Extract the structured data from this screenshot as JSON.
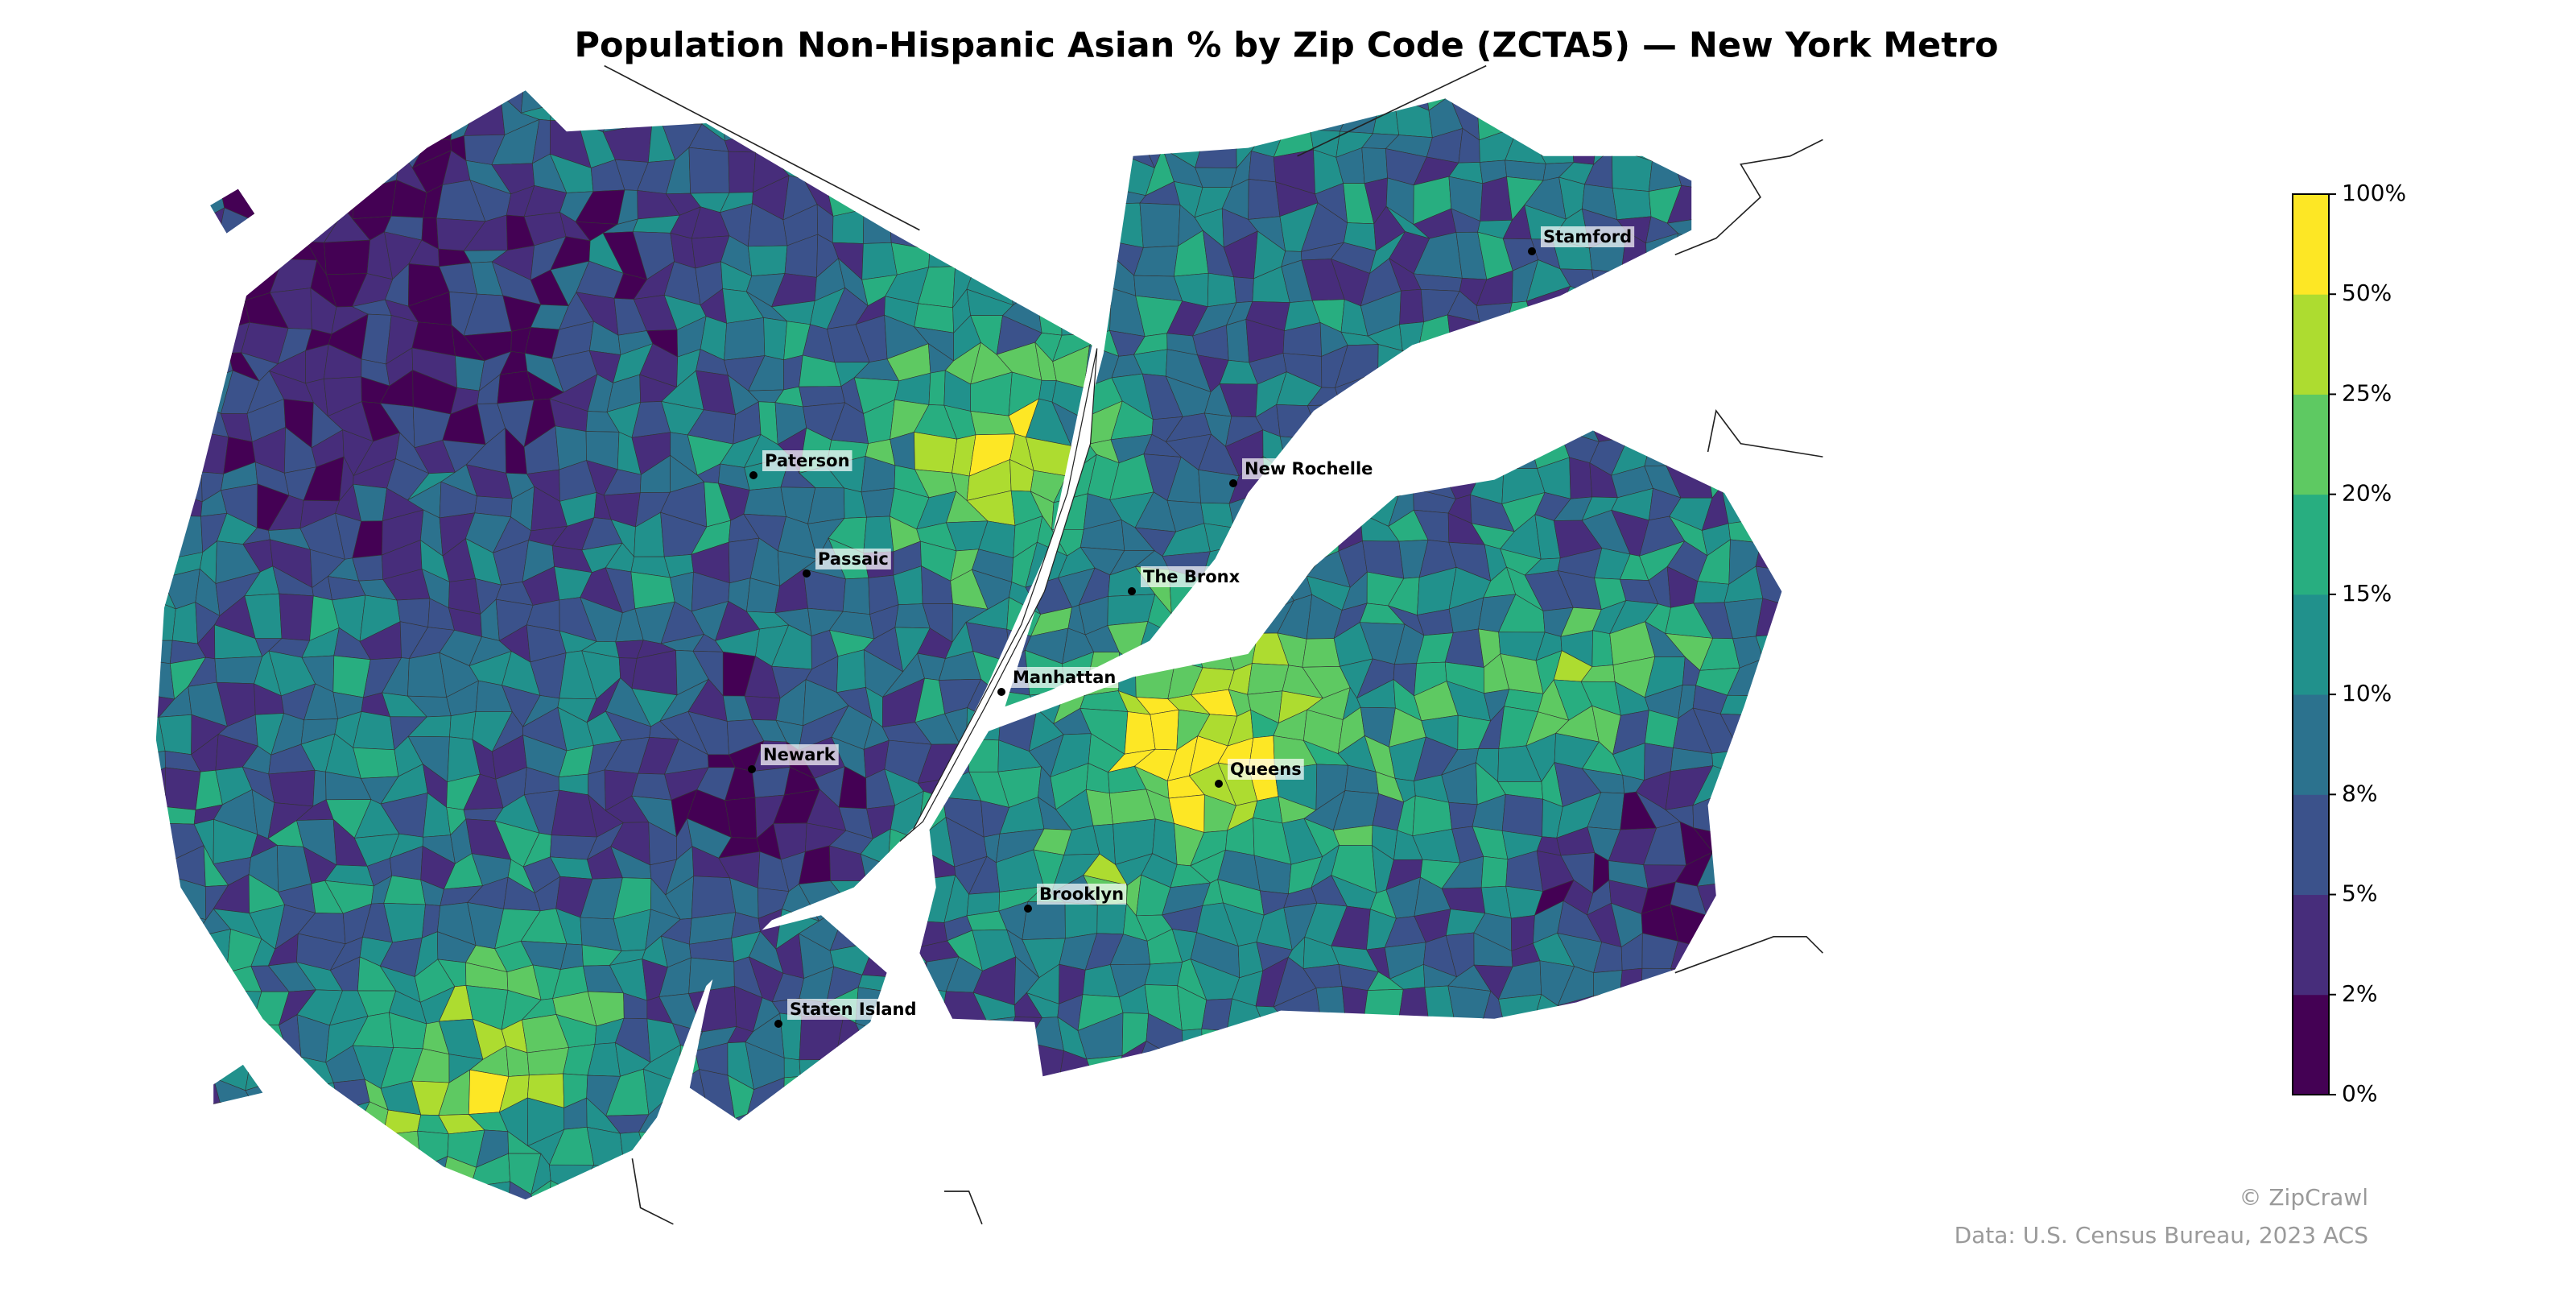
{
  "title": "Population Non-Hispanic Asian % by Zip Code (ZCTA5) — New York Metro",
  "colorbar": {
    "ticks": [
      {
        "value": 0,
        "label": "0%"
      },
      {
        "value": 2,
        "label": "2%"
      },
      {
        "value": 5,
        "label": "5%"
      },
      {
        "value": 8,
        "label": "8%"
      },
      {
        "value": 10,
        "label": "10%"
      },
      {
        "value": 15,
        "label": "15%"
      },
      {
        "value": 20,
        "label": "20%"
      },
      {
        "value": 25,
        "label": "25%"
      },
      {
        "value": 50,
        "label": "50%"
      },
      {
        "value": 100,
        "label": "100%"
      }
    ],
    "colors": [
      "#440154",
      "#472d7b",
      "#3b528b",
      "#2c728e",
      "#21918c",
      "#28ae80",
      "#5ec962",
      "#addc30",
      "#fde725"
    ]
  },
  "cities": [
    "Stamford",
    "Paterson",
    "New Rochelle",
    "Passaic",
    "The Bronx",
    "Manhattan",
    "Newark",
    "Queens",
    "Brooklyn",
    "Staten Island"
  ],
  "credits": {
    "brand": "© ZipCrawl",
    "source": "Data: U.S. Census Bureau, 2023 ACS"
  }
}
